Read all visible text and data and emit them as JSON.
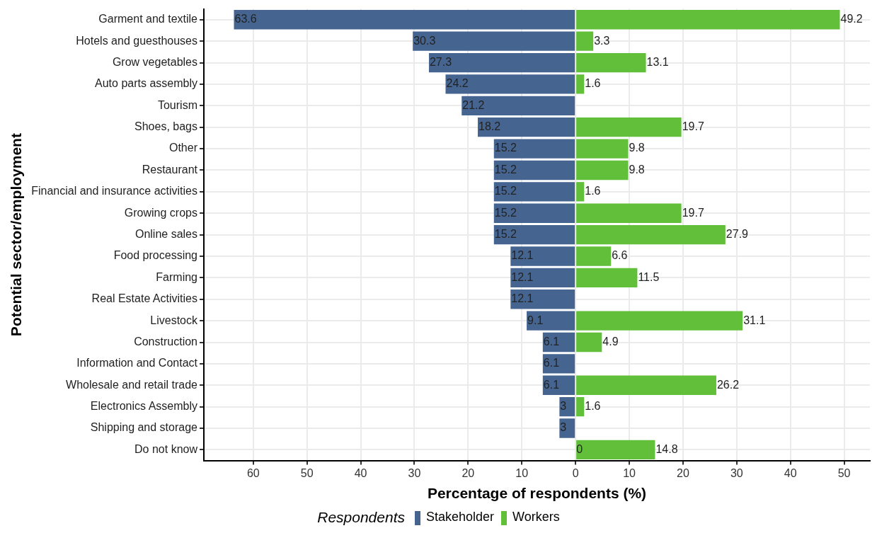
{
  "chart_data": {
    "type": "bar",
    "orientation": "horizontal",
    "xlabel": "Percentage of respondents (%)",
    "ylabel": "Potential sector/employment",
    "legend_title": "Respondents",
    "categories": [
      "Garment and textile",
      "Hotels and guesthouses",
      "Grow vegetables",
      "Auto parts assembly",
      "Tourism",
      "Shoes, bags",
      "Other",
      "Restaurant",
      "Financial and insurance activities",
      "Growing crops",
      "Online sales",
      "Food processing",
      "Farming",
      "Real Estate Activities",
      "Livestock",
      "Construction",
      "Information and Contact",
      "Wholesale and retail trade",
      "Electronics Assembly",
      "Shipping and storage",
      "Do not know"
    ],
    "series": [
      {
        "name": "Stakeholder",
        "color": "#456590",
        "values": [
          63.6,
          30.3,
          27.3,
          24.2,
          21.2,
          18.2,
          15.2,
          15.2,
          15.2,
          15.2,
          15.2,
          12.1,
          12.1,
          12.1,
          9.1,
          6.1,
          6.1,
          6.1,
          3,
          3,
          0
        ],
        "base": [
          -63.6,
          -30.3,
          -27.3,
          -24.2,
          -21.2,
          -18.2,
          -15.2,
          -15.2,
          -15.2,
          -15.2,
          -15.2,
          -12.1,
          -12.1,
          -12.1,
          -9.1,
          -6.1,
          -6.1,
          -6.1,
          -3,
          -3,
          null
        ],
        "value_labels": [
          "63.6",
          "30.3",
          "27.3",
          "24.2",
          "21.2",
          "18.2",
          "15.2",
          "15.2",
          "15.2",
          "15.2",
          "15.2",
          "12.1",
          "12.1",
          "12.1",
          "9.1",
          "6.1",
          "6.1",
          "6.1",
          "3",
          "3",
          "0"
        ]
      },
      {
        "name": "Workers",
        "color": "#62bf39",
        "values": [
          49.2,
          3.3,
          13.1,
          1.6,
          null,
          19.7,
          9.8,
          9.8,
          1.6,
          19.7,
          27.9,
          6.6,
          11.5,
          null,
          31.1,
          4.9,
          null,
          26.2,
          1.6,
          null,
          14.8
        ],
        "value_labels": [
          "49.2",
          "3.3",
          "13.1",
          "1.6",
          null,
          "19.7",
          "9.8",
          "9.8",
          "1.6",
          "19.7",
          "27.9",
          "6.6",
          "11.5",
          null,
          "31.1",
          "4.9",
          null,
          "26.2",
          "1.6",
          null,
          "14.8"
        ]
      }
    ],
    "xlim": [
      -69.2,
      54.8
    ],
    "xticks": [
      {
        "value": -60,
        "label": "60"
      },
      {
        "value": -50,
        "label": "50"
      },
      {
        "value": -40,
        "label": "40"
      },
      {
        "value": -30,
        "label": "30"
      },
      {
        "value": -20,
        "label": "20"
      },
      {
        "value": -10,
        "label": "10"
      },
      0,
      10,
      20,
      30,
      40,
      50
    ],
    "grid": true,
    "legend": "bottom"
  }
}
